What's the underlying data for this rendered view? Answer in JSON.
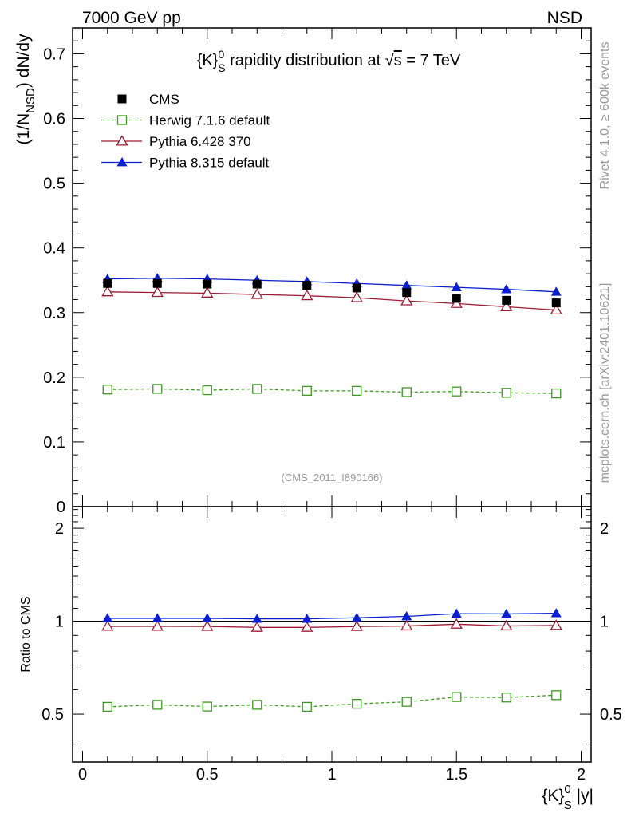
{
  "header": {
    "left": "7000 GeV pp",
    "right": "NSD"
  },
  "side_text": {
    "rivet": "Rivet 4.1.0, ≥ 600k events",
    "mcplots": "mcplots.cern.ch [arXiv:2401.10621]"
  },
  "chart_data": {
    "type": "line",
    "title_parts": {
      "pre": "{K}",
      "sup": "0",
      "sub": "S",
      "mid": " rapidity distribution at ",
      "root": "√",
      "s": "s",
      "post": " = 7 TeV"
    },
    "watermark": "(CMS_2011_I890166)",
    "ylabel_parts": {
      "pre": "(1/N",
      "sub": "NSD",
      "post": ") dN/dy"
    },
    "ratio_ylabel": "Ratio to CMS",
    "xlabel_parts": {
      "pre": "{K}",
      "sup": "0",
      "sub": "S",
      "post": " |y|"
    },
    "x": [
      0.1,
      0.3,
      0.5,
      0.7,
      0.9,
      1.1,
      1.3,
      1.5,
      1.7,
      1.9
    ],
    "xlim": [
      -0.04,
      2.04
    ],
    "ylim": [
      0,
      0.74
    ],
    "ratio_ylim": [
      0.35,
      2.35
    ],
    "xticks": [
      {
        "v": 0,
        "label": "0"
      },
      {
        "v": 0.5,
        "label": "0.5"
      },
      {
        "v": 1,
        "label": "1"
      },
      {
        "v": 1.5,
        "label": "1.5"
      },
      {
        "v": 2,
        "label": "2"
      }
    ],
    "yticks": [
      {
        "v": 0,
        "label": "0"
      },
      {
        "v": 0.1,
        "label": "0.1"
      },
      {
        "v": 0.2,
        "label": "0.2"
      },
      {
        "v": 0.3,
        "label": "0.3"
      },
      {
        "v": 0.4,
        "label": "0.4"
      },
      {
        "v": 0.5,
        "label": "0.5"
      },
      {
        "v": 0.6,
        "label": "0.6"
      },
      {
        "v": 0.7,
        "label": "0.7"
      }
    ],
    "ratio_yticks": [
      {
        "v": 0.5,
        "label": "0.5"
      },
      {
        "v": 1,
        "label": "1"
      },
      {
        "v": 2,
        "label": "2"
      }
    ],
    "series": [
      {
        "name": "CMS",
        "color": "#000000",
        "marker": "square-filled",
        "dashed": false,
        "line": false,
        "values": [
          0.345,
          0.345,
          0.344,
          0.344,
          0.342,
          0.338,
          0.331,
          0.322,
          0.319,
          0.315
        ],
        "ratio": [
          1,
          1,
          1,
          1,
          1,
          1,
          1,
          1,
          1,
          1
        ]
      },
      {
        "name": "Herwig 7.1.6 default",
        "color": "#3c9a1e",
        "marker": "square-open",
        "dashed": true,
        "line": true,
        "values": [
          0.181,
          0.182,
          0.18,
          0.182,
          0.179,
          0.179,
          0.177,
          0.178,
          0.176,
          0.175
        ],
        "ratio": [
          0.528,
          0.536,
          0.529,
          0.536,
          0.528,
          0.54,
          0.548,
          0.568,
          0.566,
          0.576
        ]
      },
      {
        "name": "Pythia 6.428 370",
        "color": "#9e1b32",
        "marker": "triangle-open",
        "dashed": false,
        "line": true,
        "values": [
          0.332,
          0.331,
          0.33,
          0.328,
          0.326,
          0.323,
          0.318,
          0.314,
          0.309,
          0.304
        ],
        "ratio": [
          0.963,
          0.963,
          0.962,
          0.955,
          0.955,
          0.961,
          0.965,
          0.978,
          0.965,
          0.969
        ]
      },
      {
        "name": "Pythia 8.315 default",
        "color": "#0a1ed2",
        "marker": "triangle-filled",
        "dashed": false,
        "line": true,
        "values": [
          0.352,
          0.353,
          0.352,
          0.35,
          0.348,
          0.345,
          0.342,
          0.339,
          0.336,
          0.332
        ],
        "ratio": [
          1.022,
          1.022,
          1.022,
          1.018,
          1.018,
          1.026,
          1.037,
          1.058,
          1.056,
          1.061
        ]
      }
    ]
  }
}
